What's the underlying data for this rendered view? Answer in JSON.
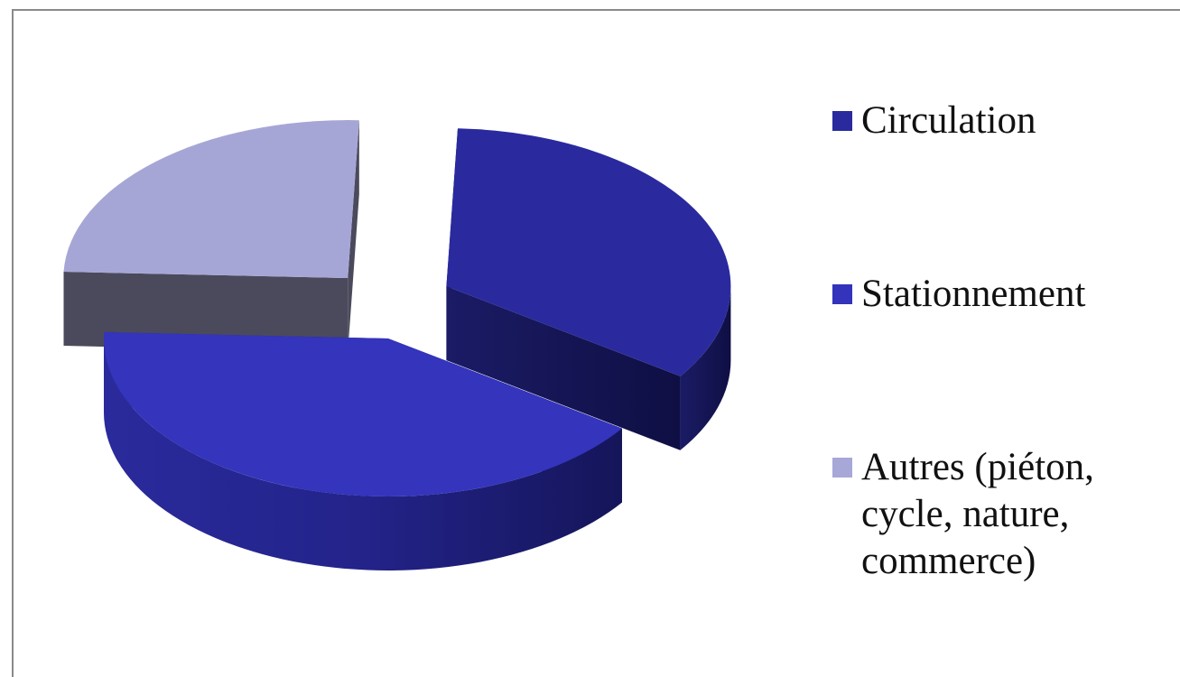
{
  "chart_data": {
    "type": "pie",
    "style": "3d-exploded",
    "title": "",
    "labels": [
      "Circulation",
      "Stationnement",
      "Autres  (piéton, cycle, nature, commerce)"
    ],
    "values": [
      34,
      41,
      25
    ],
    "colors": [
      "#2a2a9e",
      "#3333bb",
      "#a7a7d8"
    ],
    "legend_position": "right"
  },
  "legend": {
    "items": [
      {
        "label": "Circulation",
        "color": "#2a2a9e"
      },
      {
        "label": "Stationnement",
        "color": "#3333bb"
      },
      {
        "label": "Autres  (piéton, cycle, nature, commerce)",
        "color": "#a7a7d8"
      }
    ]
  }
}
